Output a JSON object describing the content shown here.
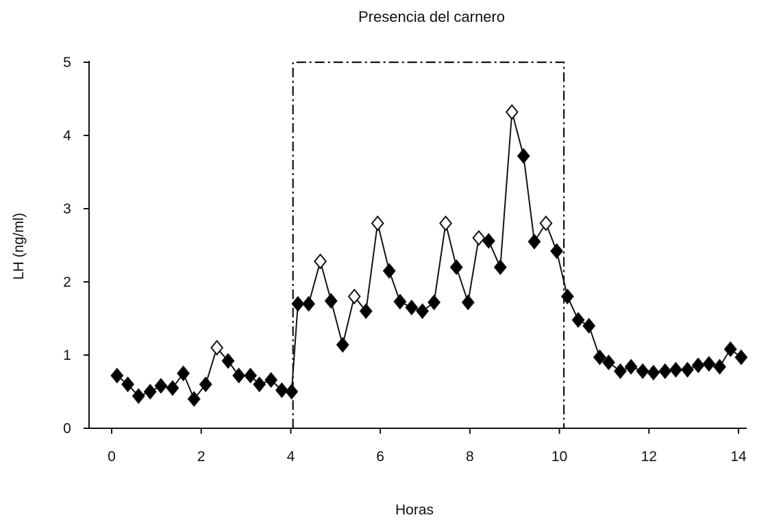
{
  "chart_data": {
    "type": "scatter",
    "title": "Presencia del carnero",
    "xlabel": "Horas",
    "ylabel": "LH (ng/ml)",
    "xlim": [
      0,
      14
    ],
    "ylim": [
      0,
      5
    ],
    "xticks": [
      0,
      2,
      4,
      6,
      8,
      10,
      12,
      14
    ],
    "yticks": [
      0,
      1,
      2,
      3,
      4,
      5
    ],
    "grid": false,
    "highlight_period": {
      "x_start": 4.05,
      "x_end": 10.1,
      "y_top": 5,
      "style": "dash-dot"
    },
    "series": [
      {
        "marker": "diamond",
        "line": true,
        "filled_color": "#000000",
        "open_color": "#ffffff",
        "points": [
          {
            "x": 0.12,
            "y": 0.72,
            "open": false
          },
          {
            "x": 0.36,
            "y": 0.6,
            "open": false
          },
          {
            "x": 0.6,
            "y": 0.44,
            "open": false
          },
          {
            "x": 0.86,
            "y": 0.5,
            "open": false
          },
          {
            "x": 1.1,
            "y": 0.58,
            "open": false
          },
          {
            "x": 1.36,
            "y": 0.55,
            "open": false
          },
          {
            "x": 1.6,
            "y": 0.75,
            "open": false
          },
          {
            "x": 1.84,
            "y": 0.4,
            "open": false
          },
          {
            "x": 2.1,
            "y": 0.6,
            "open": false
          },
          {
            "x": 2.35,
            "y": 1.1,
            "open": true
          },
          {
            "x": 2.6,
            "y": 0.92,
            "open": false
          },
          {
            "x": 2.84,
            "y": 0.72,
            "open": false
          },
          {
            "x": 3.1,
            "y": 0.72,
            "open": false
          },
          {
            "x": 3.3,
            "y": 0.6,
            "open": false
          },
          {
            "x": 3.56,
            "y": 0.66,
            "open": false
          },
          {
            "x": 3.8,
            "y": 0.52,
            "open": false
          },
          {
            "x": 4.02,
            "y": 0.5,
            "open": false
          },
          {
            "x": 4.16,
            "y": 1.7,
            "open": false
          },
          {
            "x": 4.4,
            "y": 1.7,
            "open": false
          },
          {
            "x": 4.66,
            "y": 2.28,
            "open": true
          },
          {
            "x": 4.9,
            "y": 1.74,
            "open": false
          },
          {
            "x": 5.16,
            "y": 1.14,
            "open": false
          },
          {
            "x": 5.42,
            "y": 1.8,
            "open": true
          },
          {
            "x": 5.68,
            "y": 1.6,
            "open": false
          },
          {
            "x": 5.94,
            "y": 2.8,
            "open": true
          },
          {
            "x": 6.2,
            "y": 2.15,
            "open": false
          },
          {
            "x": 6.44,
            "y": 1.73,
            "open": false
          },
          {
            "x": 6.7,
            "y": 1.65,
            "open": false
          },
          {
            "x": 6.94,
            "y": 1.6,
            "open": false
          },
          {
            "x": 7.2,
            "y": 1.72,
            "open": false
          },
          {
            "x": 7.46,
            "y": 2.8,
            "open": true
          },
          {
            "x": 7.7,
            "y": 2.2,
            "open": false
          },
          {
            "x": 7.96,
            "y": 1.72,
            "open": false
          },
          {
            "x": 8.2,
            "y": 2.6,
            "open": true
          },
          {
            "x": 8.42,
            "y": 2.56,
            "open": false
          },
          {
            "x": 8.68,
            "y": 2.2,
            "open": false
          },
          {
            "x": 8.94,
            "y": 4.32,
            "open": true
          },
          {
            "x": 9.2,
            "y": 3.72,
            "open": false
          },
          {
            "x": 9.44,
            "y": 2.55,
            "open": false
          },
          {
            "x": 9.7,
            "y": 2.8,
            "open": true
          },
          {
            "x": 9.94,
            "y": 2.42,
            "open": false
          },
          {
            "x": 10.18,
            "y": 1.8,
            "open": false
          },
          {
            "x": 10.42,
            "y": 1.48,
            "open": false
          },
          {
            "x": 10.66,
            "y": 1.4,
            "open": false
          },
          {
            "x": 10.9,
            "y": 0.97,
            "open": false
          },
          {
            "x": 11.1,
            "y": 0.9,
            "open": false
          },
          {
            "x": 11.36,
            "y": 0.78,
            "open": false
          },
          {
            "x": 11.6,
            "y": 0.84,
            "open": false
          },
          {
            "x": 11.86,
            "y": 0.78,
            "open": false
          },
          {
            "x": 12.1,
            "y": 0.76,
            "open": false
          },
          {
            "x": 12.36,
            "y": 0.78,
            "open": false
          },
          {
            "x": 12.6,
            "y": 0.8,
            "open": false
          },
          {
            "x": 12.86,
            "y": 0.8,
            "open": false
          },
          {
            "x": 13.1,
            "y": 0.86,
            "open": false
          },
          {
            "x": 13.34,
            "y": 0.88,
            "open": false
          },
          {
            "x": 13.58,
            "y": 0.84,
            "open": false
          },
          {
            "x": 13.82,
            "y": 1.08,
            "open": false
          },
          {
            "x": 14.06,
            "y": 0.97,
            "open": false
          }
        ]
      }
    ]
  }
}
